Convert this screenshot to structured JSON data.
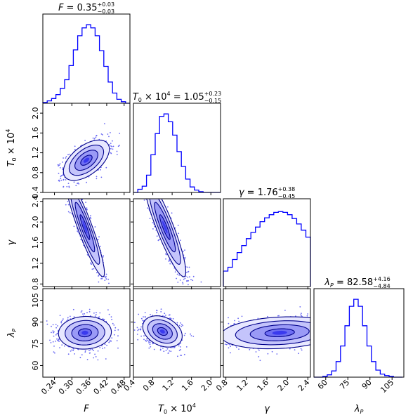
{
  "chart_data": {
    "type": "corner",
    "parameters": [
      {
        "id": "F",
        "label": "F",
        "median": "0.35",
        "err_plus": "+0.03",
        "err_minus": "−0.03",
        "range": [
          0.2,
          0.5
        ],
        "ticks": [
          0.24,
          0.3,
          0.36,
          0.42,
          0.48
        ],
        "tick_labels": [
          "0.24",
          "0.30",
          "0.36",
          "0.42",
          "0.48"
        ],
        "hist": {
          "edges": [
            0.2,
            0.215,
            0.23,
            0.245,
            0.26,
            0.275,
            0.29,
            0.305,
            0.32,
            0.335,
            0.35,
            0.365,
            0.38,
            0.395,
            0.41,
            0.425,
            0.44,
            0.455,
            0.47,
            0.485,
            0.5
          ],
          "counts": [
            0.01,
            0.03,
            0.06,
            0.11,
            0.19,
            0.3,
            0.48,
            0.68,
            0.86,
            0.96,
            1.0,
            0.96,
            0.86,
            0.67,
            0.47,
            0.27,
            0.13,
            0.05,
            0.02,
            0.0
          ]
        }
      },
      {
        "id": "T0",
        "label": "T₀ × 10⁴",
        "median": "1.05",
        "err_plus": "+0.23",
        "err_minus": "−0.15",
        "range": [
          0.4,
          2.2
        ],
        "ticks": [
          0.4,
          0.8,
          1.2,
          1.6,
          2.0
        ],
        "tick_labels": [
          "0.4",
          "0.8",
          "1.2",
          "1.6",
          "2.0"
        ],
        "hist": {
          "edges": [
            0.4,
            0.49,
            0.58,
            0.67,
            0.76,
            0.85,
            0.94,
            1.03,
            1.12,
            1.21,
            1.3,
            1.39,
            1.48,
            1.57,
            1.66,
            1.75,
            1.84,
            1.93,
            2.02,
            2.11,
            2.2
          ],
          "counts": [
            0.0,
            0.04,
            0.08,
            0.22,
            0.48,
            0.75,
            0.97,
            1.0,
            0.9,
            0.73,
            0.52,
            0.33,
            0.17,
            0.07,
            0.03,
            0.01,
            0.0,
            0.0,
            0.0,
            0.0
          ]
        }
      },
      {
        "id": "gamma",
        "label": "γ",
        "median": "1.76",
        "err_plus": "+0.38",
        "err_minus": "−0.45",
        "range": [
          0.75,
          2.45
        ],
        "ticks": [
          0.8,
          1.2,
          1.6,
          2.0,
          2.4
        ],
        "tick_labels": [
          "0.8",
          "1.2",
          "1.6",
          "2.0",
          "2.4"
        ],
        "hist": {
          "edges": [
            0.75,
            0.8394,
            0.9289,
            1.0184,
            1.1078,
            1.1973,
            1.2868,
            1.3763,
            1.4657,
            1.5552,
            1.6447,
            1.7342,
            1.8236,
            1.9131,
            2.0026,
            2.0921,
            2.1815,
            2.271,
            2.3605,
            2.45
          ],
          "counts": [
            0.2,
            0.25,
            0.35,
            0.44,
            0.53,
            0.62,
            0.7,
            0.77,
            0.84,
            0.89,
            0.93,
            0.96,
            0.97,
            0.96,
            0.93,
            0.88,
            0.81,
            0.73,
            0.64
          ]
        }
      },
      {
        "id": "lambdaP",
        "label": "λP",
        "median": "82.58",
        "err_plus": "+4.16",
        "err_minus": "−4.84",
        "range": [
          52,
          113
        ],
        "ticks": [
          60,
          75,
          90,
          105
        ],
        "tick_labels": [
          "60",
          "75",
          "90",
          "105"
        ],
        "hist": {
          "edges": [
            52,
            55,
            58,
            61,
            64,
            67,
            70,
            73,
            76,
            79,
            82,
            85,
            88,
            91,
            94,
            97,
            100,
            103,
            106,
            109,
            112
          ],
          "counts": [
            0.0,
            0.0,
            0.01,
            0.03,
            0.08,
            0.2,
            0.4,
            0.66,
            0.91,
            1.0,
            0.91,
            0.66,
            0.4,
            0.2,
            0.09,
            0.04,
            0.02,
            0.01,
            0.0,
            0.0
          ]
        }
      }
    ],
    "joint": [
      {
        "x": "F",
        "y": "T0",
        "mean": [
          0.35,
          1.05
        ],
        "sd": [
          0.033,
          0.17
        ],
        "rho": 0.55
      },
      {
        "x": "F",
        "y": "gamma",
        "mean": [
          0.345,
          1.9
        ],
        "sd": [
          0.028,
          0.4
        ],
        "rho": -0.92
      },
      {
        "x": "T0",
        "y": "gamma",
        "mean": [
          1.05,
          1.9
        ],
        "sd": [
          0.18,
          0.4
        ],
        "rho": -0.9
      },
      {
        "x": "F",
        "y": "lambdaP",
        "mean": [
          0.345,
          82.6
        ],
        "sd": [
          0.038,
          4.7
        ],
        "rho": 0.05
      },
      {
        "x": "T0",
        "y": "lambdaP",
        "mean": [
          1.0,
          83.5
        ],
        "sd": [
          0.17,
          4.5
        ],
        "rho": -0.3
      },
      {
        "x": "gamma",
        "y": "lambdaP",
        "mean": [
          1.85,
          82.6
        ],
        "sd": [
          0.48,
          4.6
        ],
        "rho": 0.18
      }
    ],
    "contour_levels_sigma": [
      0.6,
      1.2,
      1.8,
      2.4
    ],
    "colors": {
      "line": "#0000ff",
      "scatter": "#3636f0",
      "fill_levels": [
        "#e8e8ff",
        "#c4c4fb",
        "#9a9af6",
        "#6e6ef2",
        "#3a3aee"
      ],
      "contour": "#00008b"
    }
  }
}
